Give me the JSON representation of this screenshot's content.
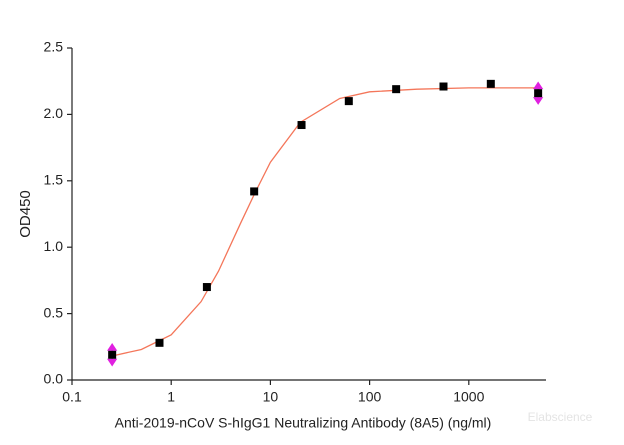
{
  "chart_data": {
    "type": "scatter",
    "x_label": "Anti-2019-nCoV S-hIgG1 Neutralizing Antibody (8A5) (ng/ml)",
    "y_label": "OD450",
    "watermark": "Elabscience",
    "x_log": true,
    "xlim": [
      0.1,
      6000
    ],
    "xticks": [
      0.1,
      1,
      10,
      100,
      1000
    ],
    "ylim": [
      0,
      2.5
    ],
    "yticks": [
      {
        "value": 0,
        "label": "0.0"
      },
      0.5,
      {
        "value": 1,
        "label": "1.0"
      },
      1.5,
      {
        "value": 2,
        "label": "2.0"
      },
      2.5
    ],
    "x": [
      0.254,
      0.762,
      2.29,
      6.86,
      20.6,
      61.7,
      185.2,
      555.6,
      1666.7,
      5000
    ],
    "series": [
      {
        "color": "#000000",
        "values": [
          0.19,
          0.28,
          0.7,
          1.42,
          1.92,
          2.1,
          2.19,
          2.21,
          2.23,
          2.16
        ],
        "error": [
          0.08,
          null,
          null,
          null,
          null,
          null,
          null,
          null,
          null,
          0.08
        ],
        "error_color": "#e020e0"
      }
    ],
    "fit": {
      "color": "#f4765a",
      "x": [
        0.25,
        0.5,
        1,
        2,
        3,
        5,
        7,
        10,
        20,
        50,
        100,
        300,
        1000,
        5000
      ],
      "values": [
        0.18,
        0.23,
        0.34,
        0.59,
        0.82,
        1.18,
        1.41,
        1.64,
        1.94,
        2.12,
        2.17,
        2.19,
        2.2,
        2.2
      ]
    }
  }
}
